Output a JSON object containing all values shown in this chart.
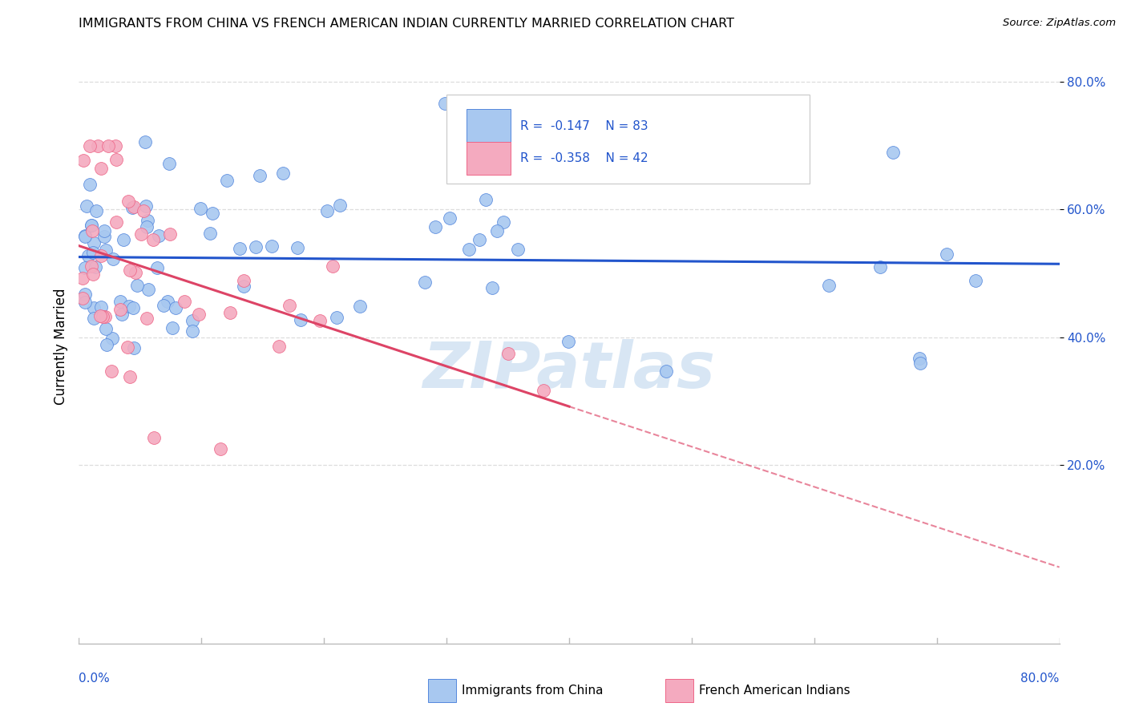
{
  "title": "IMMIGRANTS FROM CHINA VS FRENCH AMERICAN INDIAN CURRENTLY MARRIED CORRELATION CHART",
  "source": "Source: ZipAtlas.com",
  "ylabel": "Currently Married",
  "xlim": [
    0.0,
    0.8
  ],
  "ylim": [
    -0.08,
    0.85
  ],
  "blue_color": "#A8C8F0",
  "pink_color": "#F4AABF",
  "blue_line_color": "#2255CC",
  "pink_line_color": "#DD4466",
  "blue_dot_edge": "#5588DD",
  "pink_dot_edge": "#EE6688",
  "watermark_color": "#C8DCF0",
  "seed": 42,
  "n_blue": 83,
  "n_pink": 42
}
